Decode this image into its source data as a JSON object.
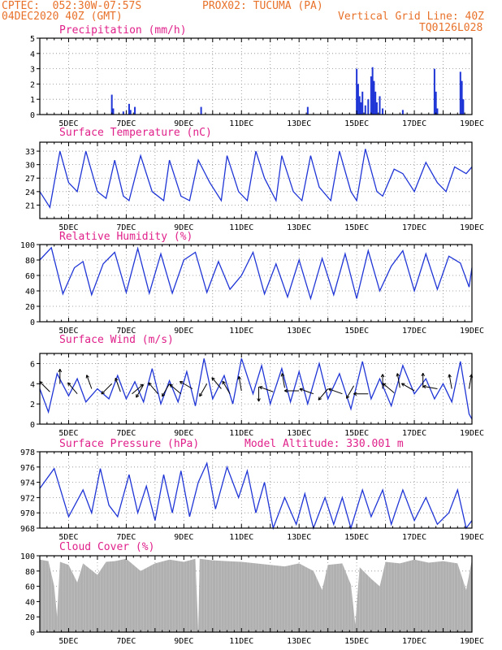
{
  "header": {
    "line1_left": "CPTEC:  052:30W-07:57S",
    "line1_right": "PROX02: TUCUMA (PA)",
    "line2_left": "04DEC2020 40Z (GMT)",
    "line2_right": "Vertical Grid Line: 40Z",
    "line3_right": "TQ0126L028",
    "model_altitude": "Model Altitude: 330.001 m"
  },
  "colors": {
    "series": "#1f35d6",
    "title": "#e0208a",
    "header": "#e8712a",
    "cloud": "#b0b0b0",
    "arrow": "#000000"
  },
  "chart_data": [
    {
      "id": "precip",
      "type": "bar",
      "title": "Precipitation (mm/h)",
      "ylim": [
        0,
        5
      ],
      "yticks": [
        0,
        1,
        2,
        3,
        4,
        5
      ],
      "xticks": [
        "5DEC",
        "7DEC",
        "9DEC",
        "11DEC",
        "13DEC",
        "15DEC",
        "17DEC",
        "19DEC"
      ],
      "x_range_days": [
        4.0,
        19.0
      ],
      "bars": [
        [
          6.5,
          1.3
        ],
        [
          6.55,
          0.4
        ],
        [
          6.9,
          0.2
        ],
        [
          7.1,
          0.7
        ],
        [
          7.15,
          0.3
        ],
        [
          7.3,
          0.5
        ],
        [
          9.6,
          0.5
        ],
        [
          13.3,
          0.5
        ],
        [
          15.0,
          3.0
        ],
        [
          15.05,
          2.0
        ],
        [
          15.1,
          1.2
        ],
        [
          15.15,
          0.8
        ],
        [
          15.2,
          1.5
        ],
        [
          15.3,
          0.6
        ],
        [
          15.4,
          1.0
        ],
        [
          15.5,
          2.5
        ],
        [
          15.55,
          3.1
        ],
        [
          15.6,
          2.2
        ],
        [
          15.65,
          1.5
        ],
        [
          15.7,
          0.8
        ],
        [
          15.8,
          1.2
        ],
        [
          15.9,
          0.4
        ],
        [
          16.6,
          0.3
        ],
        [
          17.7,
          3.0
        ],
        [
          17.75,
          1.5
        ],
        [
          17.8,
          0.4
        ],
        [
          18.6,
          2.8
        ],
        [
          18.65,
          2.2
        ],
        [
          18.7,
          1.0
        ]
      ]
    },
    {
      "id": "temp",
      "type": "line",
      "title": "Surface Temperature (nC)",
      "ylim": [
        18,
        35
      ],
      "yticks": [
        21,
        24,
        27,
        30,
        33
      ],
      "xticks": [
        "5DEC",
        "7DEC",
        "9DEC",
        "11DEC",
        "13DEC",
        "15DEC",
        "17DEC",
        "19DEC"
      ],
      "x_range_days": [
        4.0,
        19.0
      ],
      "points": [
        [
          4.0,
          24
        ],
        [
          4.35,
          20.5
        ],
        [
          4.7,
          33
        ],
        [
          5.0,
          26
        ],
        [
          5.3,
          24
        ],
        [
          5.6,
          33
        ],
        [
          6.0,
          24
        ],
        [
          6.3,
          22.5
        ],
        [
          6.6,
          31
        ],
        [
          6.9,
          23
        ],
        [
          7.1,
          22
        ],
        [
          7.5,
          32
        ],
        [
          7.9,
          24
        ],
        [
          8.3,
          22
        ],
        [
          8.5,
          31
        ],
        [
          8.9,
          23
        ],
        [
          9.2,
          22
        ],
        [
          9.5,
          31
        ],
        [
          9.9,
          26
        ],
        [
          10.3,
          22
        ],
        [
          10.5,
          32
        ],
        [
          10.9,
          24
        ],
        [
          11.2,
          22
        ],
        [
          11.5,
          33
        ],
        [
          11.8,
          27
        ],
        [
          12.2,
          22
        ],
        [
          12.4,
          32
        ],
        [
          12.8,
          24
        ],
        [
          13.1,
          22
        ],
        [
          13.4,
          32
        ],
        [
          13.7,
          25
        ],
        [
          14.1,
          22
        ],
        [
          14.4,
          33
        ],
        [
          14.8,
          24
        ],
        [
          15.0,
          22
        ],
        [
          15.3,
          33.5
        ],
        [
          15.7,
          24
        ],
        [
          15.9,
          23
        ],
        [
          16.3,
          29
        ],
        [
          16.6,
          28
        ],
        [
          17.0,
          24
        ],
        [
          17.4,
          30.5
        ],
        [
          17.8,
          26
        ],
        [
          18.1,
          24
        ],
        [
          18.4,
          29.5
        ],
        [
          18.8,
          28
        ],
        [
          19.0,
          29.5
        ]
      ]
    },
    {
      "id": "rh",
      "type": "line",
      "title": "Relative Humidity (%)",
      "ylim": [
        0,
        100
      ],
      "yticks": [
        0,
        20,
        40,
        60,
        80,
        100
      ],
      "xticks": [
        "5DEC",
        "7DEC",
        "9DEC",
        "11DEC",
        "13DEC",
        "15DEC",
        "17DEC",
        "19DEC"
      ],
      "x_range_days": [
        4.0,
        19.0
      ],
      "points": [
        [
          4.0,
          80
        ],
        [
          4.4,
          96
        ],
        [
          4.8,
          36
        ],
        [
          5.2,
          70
        ],
        [
          5.5,
          78
        ],
        [
          5.8,
          35
        ],
        [
          6.2,
          75
        ],
        [
          6.6,
          90
        ],
        [
          7.0,
          38
        ],
        [
          7.4,
          95
        ],
        [
          7.8,
          37
        ],
        [
          8.2,
          88
        ],
        [
          8.6,
          37
        ],
        [
          9.0,
          80
        ],
        [
          9.4,
          90
        ],
        [
          9.8,
          38
        ],
        [
          10.2,
          78
        ],
        [
          10.6,
          42
        ],
        [
          11.0,
          60
        ],
        [
          11.4,
          90
        ],
        [
          11.8,
          36
        ],
        [
          12.2,
          75
        ],
        [
          12.6,
          32
        ],
        [
          13.0,
          80
        ],
        [
          13.4,
          30
        ],
        [
          13.8,
          82
        ],
        [
          14.2,
          35
        ],
        [
          14.6,
          88
        ],
        [
          15.0,
          30
        ],
        [
          15.4,
          92
        ],
        [
          15.8,
          40
        ],
        [
          16.2,
          72
        ],
        [
          16.6,
          92
        ],
        [
          17.0,
          40
        ],
        [
          17.4,
          88
        ],
        [
          17.8,
          42
        ],
        [
          18.2,
          85
        ],
        [
          18.6,
          76
        ],
        [
          18.9,
          45
        ],
        [
          19.0,
          70
        ]
      ]
    },
    {
      "id": "wind",
      "type": "line",
      "title": "Surface Wind (m/s)",
      "ylim": [
        0,
        7
      ],
      "yticks": [
        0,
        2,
        4,
        6
      ],
      "xticks": [
        "5DEC",
        "7DEC",
        "9DEC",
        "11DEC",
        "13DEC",
        "15DEC",
        "17DEC",
        "19DEC"
      ],
      "x_range_days": [
        4.0,
        19.0
      ],
      "points": [
        [
          4.0,
          3.5
        ],
        [
          4.3,
          1.2
        ],
        [
          4.6,
          5
        ],
        [
          5.0,
          2.8
        ],
        [
          5.3,
          4.5
        ],
        [
          5.6,
          2.2
        ],
        [
          6.0,
          3.5
        ],
        [
          6.4,
          2.5
        ],
        [
          6.7,
          4.8
        ],
        [
          7.0,
          2.5
        ],
        [
          7.3,
          4.2
        ],
        [
          7.6,
          2.2
        ],
        [
          7.9,
          5.5
        ],
        [
          8.2,
          2.0
        ],
        [
          8.5,
          4.3
        ],
        [
          8.8,
          2.2
        ],
        [
          9.1,
          5.2
        ],
        [
          9.4,
          1.8
        ],
        [
          9.7,
          6.5
        ],
        [
          10.0,
          2.5
        ],
        [
          10.4,
          4.8
        ],
        [
          10.7,
          2.0
        ],
        [
          11.0,
          6.5
        ],
        [
          11.4,
          3.0
        ],
        [
          11.7,
          5.8
        ],
        [
          12.0,
          2.0
        ],
        [
          12.4,
          5.5
        ],
        [
          12.7,
          2.2
        ],
        [
          13.0,
          5.2
        ],
        [
          13.3,
          2.0
        ],
        [
          13.7,
          6.0
        ],
        [
          14.0,
          2.5
        ],
        [
          14.4,
          5.0
        ],
        [
          14.8,
          1.5
        ],
        [
          15.2,
          6.2
        ],
        [
          15.5,
          2.5
        ],
        [
          15.8,
          4.5
        ],
        [
          16.2,
          1.8
        ],
        [
          16.6,
          5.8
        ],
        [
          17.0,
          3.0
        ],
        [
          17.4,
          4.5
        ],
        [
          17.7,
          2.5
        ],
        [
          18.0,
          4.0
        ],
        [
          18.3,
          2.2
        ],
        [
          18.6,
          6.2
        ],
        [
          18.9,
          1.0
        ],
        [
          19.0,
          0.5
        ]
      ],
      "vectors": [
        [
          4.35,
          3.2,
          225
        ],
        [
          4.7,
          4.0,
          270
        ],
        [
          5.3,
          3.0,
          230
        ],
        [
          5.8,
          3.5,
          250
        ],
        [
          6.5,
          4.0,
          135
        ],
        [
          6.8,
          3.2,
          250
        ],
        [
          7.2,
          3.0,
          320
        ],
        [
          7.6,
          3.9,
          120
        ],
        [
          8.1,
          3.0,
          230
        ],
        [
          8.5,
          4.0,
          120
        ],
        [
          8.9,
          3.0,
          220
        ],
        [
          9.3,
          3.5,
          210
        ],
        [
          9.8,
          4.0,
          120
        ],
        [
          10.3,
          3.5,
          230
        ],
        [
          10.6,
          3.0,
          240
        ],
        [
          11.0,
          3.3,
          260
        ],
        [
          11.6,
          3.7,
          90
        ],
        [
          12.1,
          3.2,
          200
        ],
        [
          12.5,
          3.6,
          260
        ],
        [
          13.0,
          3.3,
          180
        ],
        [
          13.5,
          3.0,
          200
        ],
        [
          14.0,
          3.5,
          130
        ],
        [
          14.5,
          3.0,
          200
        ],
        [
          14.9,
          3.8,
          120
        ],
        [
          15.4,
          3.0,
          180
        ],
        [
          15.9,
          3.5,
          270
        ],
        [
          16.3,
          3.1,
          220
        ],
        [
          16.5,
          3.6,
          260
        ],
        [
          17.0,
          3.3,
          210
        ],
        [
          17.3,
          3.6,
          270
        ],
        [
          17.8,
          3.5,
          190
        ],
        [
          18.3,
          3.5,
          260
        ],
        [
          18.9,
          3.5,
          280
        ]
      ]
    },
    {
      "id": "press",
      "type": "line",
      "title": "Surface Pressure (hPa)",
      "ylim": [
        968,
        978
      ],
      "yticks": [
        968,
        970,
        972,
        974,
        976,
        978
      ],
      "xticks": [
        "5DEC",
        "7DEC",
        "9DEC",
        "11DEC",
        "13DEC",
        "15DEC",
        "17DEC",
        "19DEC"
      ],
      "x_range_days": [
        4.0,
        19.0
      ],
      "points": [
        [
          4.0,
          973.2
        ],
        [
          4.5,
          975.8
        ],
        [
          5.0,
          969.5
        ],
        [
          5.5,
          973
        ],
        [
          5.8,
          970
        ],
        [
          6.1,
          975.8
        ],
        [
          6.4,
          971
        ],
        [
          6.7,
          969.5
        ],
        [
          7.1,
          975
        ],
        [
          7.4,
          970
        ],
        [
          7.7,
          973.5
        ],
        [
          8.0,
          969
        ],
        [
          8.3,
          975
        ],
        [
          8.6,
          970
        ],
        [
          8.9,
          975.5
        ],
        [
          9.2,
          969.5
        ],
        [
          9.5,
          974
        ],
        [
          9.8,
          976.5
        ],
        [
          10.1,
          970.5
        ],
        [
          10.5,
          976
        ],
        [
          10.9,
          972
        ],
        [
          11.2,
          975.5
        ],
        [
          11.5,
          970
        ],
        [
          11.8,
          974
        ],
        [
          12.1,
          968
        ],
        [
          12.5,
          972
        ],
        [
          12.9,
          968.5
        ],
        [
          13.2,
          972.5
        ],
        [
          13.5,
          968
        ],
        [
          13.9,
          972
        ],
        [
          14.2,
          968.5
        ],
        [
          14.5,
          972
        ],
        [
          14.8,
          968
        ],
        [
          15.2,
          973
        ],
        [
          15.5,
          969.5
        ],
        [
          15.9,
          973
        ],
        [
          16.2,
          968.5
        ],
        [
          16.6,
          973
        ],
        [
          17.0,
          969
        ],
        [
          17.4,
          972
        ],
        [
          17.8,
          968.5
        ],
        [
          18.2,
          970
        ],
        [
          18.5,
          973
        ],
        [
          18.8,
          968
        ],
        [
          19.0,
          969
        ]
      ]
    },
    {
      "id": "cloud",
      "type": "area",
      "title": "Cloud Cover (%)",
      "ylim": [
        0,
        100
      ],
      "yticks": [
        0,
        20,
        40,
        60,
        80,
        100
      ],
      "xticks": [
        "5DEC",
        "7DEC",
        "9DEC",
        "11DEC",
        "13DEC",
        "15DEC",
        "17DEC",
        "19DEC"
      ],
      "x_range_days": [
        4.0,
        19.0
      ],
      "points": [
        [
          4.0,
          95
        ],
        [
          4.3,
          93
        ],
        [
          4.5,
          60
        ],
        [
          4.6,
          20
        ],
        [
          4.7,
          92
        ],
        [
          5.0,
          88
        ],
        [
          5.3,
          65
        ],
        [
          5.5,
          90
        ],
        [
          6.0,
          75
        ],
        [
          6.3,
          92
        ],
        [
          6.6,
          93
        ],
        [
          7.0,
          96
        ],
        [
          7.5,
          80
        ],
        [
          8.0,
          90
        ],
        [
          8.5,
          95
        ],
        [
          9.0,
          92
        ],
        [
          9.4,
          96
        ],
        [
          9.5,
          0
        ],
        [
          9.55,
          96
        ],
        [
          10.0,
          94
        ],
        [
          10.5,
          93
        ],
        [
          11.0,
          92
        ],
        [
          11.5,
          90
        ],
        [
          12.0,
          88
        ],
        [
          12.5,
          86
        ],
        [
          13.0,
          90
        ],
        [
          13.5,
          80
        ],
        [
          13.8,
          55
        ],
        [
          14.0,
          88
        ],
        [
          14.5,
          90
        ],
        [
          14.8,
          62
        ],
        [
          14.95,
          10
        ],
        [
          15.1,
          85
        ],
        [
          15.5,
          70
        ],
        [
          15.8,
          60
        ],
        [
          16.0,
          92
        ],
        [
          16.5,
          90
        ],
        [
          17.0,
          95
        ],
        [
          17.5,
          91
        ],
        [
          18.0,
          93
        ],
        [
          18.5,
          90
        ],
        [
          18.8,
          55
        ],
        [
          19.0,
          95
        ]
      ]
    }
  ]
}
